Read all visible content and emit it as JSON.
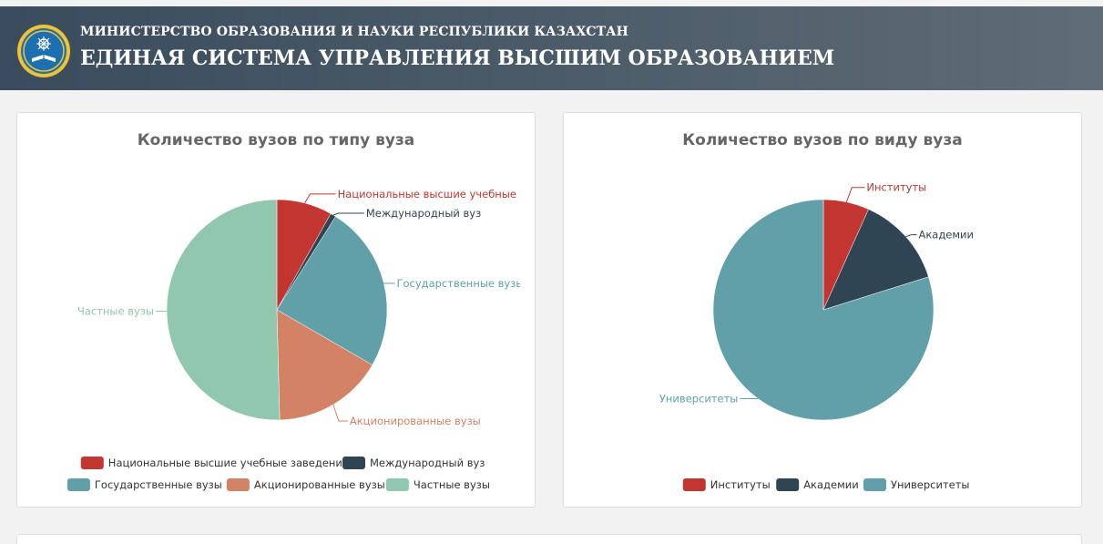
{
  "header": {
    "ministry": "МИНИСТЕРСТВО ОБРАЗОВАНИЯ И НАУКИ РЕСПУБЛИКИ КАЗАХСТАН",
    "system_title": "ЕДИНАЯ СИСТЕМА УПРАВЛЕНИЯ ВЫСШИМ ОБРАЗОВАНИЕМ",
    "logo_icon": "ministry-emblem-icon",
    "background_colors": [
      "#3a4c5d",
      "#606c76"
    ]
  },
  "chart_data": [
    {
      "type": "pie",
      "title": "Количество вузов по типу вуза",
      "categories": [
        "Национальные высшие учебные заведения",
        "Международный вуз",
        "Государственные вузы",
        "Акционированные вузы",
        "Частные вузы"
      ],
      "slice_labels": [
        "Национальные высшие учебные зав",
        "Международный вуз",
        "Государственные вузы",
        "Акционированные вузы",
        "Частные вузы"
      ],
      "values": [
        10,
        1,
        30,
        20,
        62
      ],
      "colors": [
        "#c23531",
        "#2f4554",
        "#61a0a8",
        "#d48265",
        "#91c7ae"
      ],
      "legend_position": "bottom"
    },
    {
      "type": "pie",
      "title": "Количество вузов по виду вуза",
      "categories": [
        "Институты",
        "Академии",
        "Университеты"
      ],
      "slice_labels": [
        "Институты",
        "Академии",
        "Университеты"
      ],
      "values": [
        8,
        16,
        95
      ],
      "colors": [
        "#c23531",
        "#2f4554",
        "#61a0a8"
      ],
      "legend_position": "bottom"
    }
  ]
}
